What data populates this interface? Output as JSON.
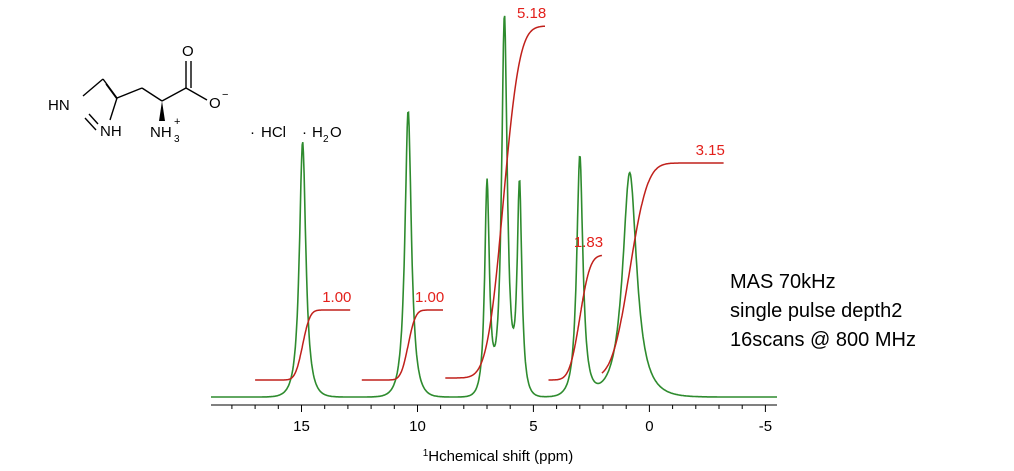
{
  "chart_data": {
    "type": "line",
    "title": "",
    "xlabel": "chemical shift (ppm)",
    "xlabel_prefix": "1H",
    "xlim": [
      18.9,
      -5.5
    ],
    "x_reversed": true,
    "x_ticks": [
      15,
      10,
      5,
      0,
      -5
    ],
    "series": [
      {
        "kind": "spectrum",
        "color": "#2e8b2e",
        "peaks": [
          {
            "x": 14.95,
            "height": 0.66,
            "width": 0.25
          },
          {
            "x": 10.4,
            "height": 0.74,
            "width": 0.25
          },
          {
            "x": 7.0,
            "height": 0.55,
            "width": 0.18
          },
          {
            "x": 6.25,
            "height": 0.98,
            "width": 0.22
          },
          {
            "x": 5.6,
            "height": 0.54,
            "width": 0.18
          },
          {
            "x": 3.0,
            "height": 0.62,
            "width": 0.24
          },
          {
            "x": 0.85,
            "height": 0.58,
            "width": 0.55
          }
        ]
      },
      {
        "kind": "integral",
        "color": "#c0201b",
        "curves": [
          {
            "x_start": 17.0,
            "x_end": 12.9,
            "center": 14.95,
            "sigma": 0.25,
            "label": "1.00"
          },
          {
            "x_start": 12.4,
            "x_end": 8.9,
            "center": 10.4,
            "sigma": 0.25,
            "label": "1.00"
          },
          {
            "x_start": 8.8,
            "x_end": 4.5,
            "center": 6.3,
            "sigma": 0.55,
            "label": "5.18"
          },
          {
            "x_start": 4.35,
            "x_end": 2.05,
            "center": 3.0,
            "sigma": 0.35,
            "label": "1.83"
          },
          {
            "x_start": 2.05,
            "x_end": -3.2,
            "center": 0.85,
            "sigma": 0.6,
            "label": "3.15"
          }
        ]
      }
    ]
  },
  "structure": {
    "name_label": "histidine hydrochloride monohydrate",
    "atoms": {
      "hn": "HN",
      "nh": "NH",
      "o_top": "O",
      "o_minus": "O",
      "o_charge": "−",
      "nh3": "NH",
      "nh3_sub": "3",
      "nh3_charge": "+",
      "dot1": "·",
      "hcl": "HCl",
      "dot2": "·",
      "h2o_h": "H",
      "h2o_sub": "2",
      "h2o_o": "O"
    }
  },
  "annotation": {
    "line1": "MAS 70kHz",
    "line2": "single pulse depth2",
    "line3": "16scans @ 800 MHz"
  }
}
